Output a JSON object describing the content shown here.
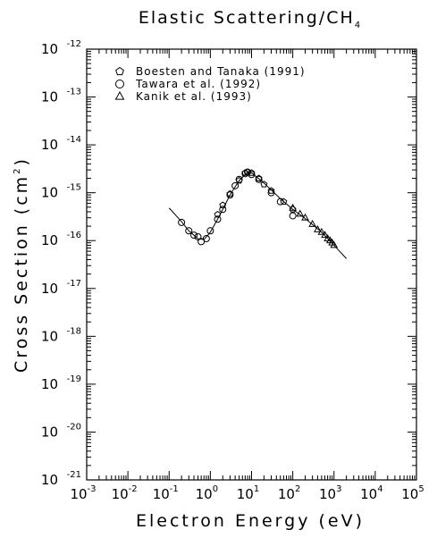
{
  "chart_data": {
    "type": "scatter",
    "title": "Elastic Scattering/CH",
    "title_subscript": "4",
    "x_label": "Electron Energy (eV)",
    "y_label": "Cross Section (cm",
    "y_label_superscript": "2",
    "y_label_end": ")",
    "log_x": true,
    "log_y": true,
    "legend": "top-left",
    "xlim": [
      0.001,
      100000
    ],
    "ylim": [
      1e-21,
      1e-12
    ],
    "xticks": [
      {
        "value": 0.001,
        "label": "10",
        "exponent": "-3"
      },
      {
        "value": 0.01,
        "label": "10",
        "exponent": "-2"
      },
      {
        "value": 0.1,
        "label": "10",
        "exponent": "-1"
      },
      {
        "value": 1,
        "label": "10",
        "exponent": "0"
      },
      {
        "value": 10,
        "label": "10",
        "exponent": "1"
      },
      {
        "value": 100,
        "label": "10",
        "exponent": "2"
      },
      {
        "value": 1000,
        "label": "10",
        "exponent": "3"
      },
      {
        "value": 10000,
        "label": "10",
        "exponent": "4"
      },
      {
        "value": 100000,
        "label": "10",
        "exponent": "5"
      }
    ],
    "yticks": [
      {
        "value": 1e-21,
        "label": "10",
        "exponent": "-21"
      },
      {
        "value": 1e-20,
        "label": "10",
        "exponent": "-20"
      },
      {
        "value": 1e-19,
        "label": "10",
        "exponent": "-19"
      },
      {
        "value": 1e-18,
        "label": "10",
        "exponent": "-18"
      },
      {
        "value": 1e-17,
        "label": "10",
        "exponent": "-17"
      },
      {
        "value": 1e-16,
        "label": "10",
        "exponent": "-16"
      },
      {
        "value": 1e-15,
        "label": "10",
        "exponent": "-15"
      },
      {
        "value": 1e-14,
        "label": "10",
        "exponent": "-14"
      },
      {
        "value": 1e-13,
        "label": "10",
        "exponent": "-13"
      },
      {
        "value": 1e-12,
        "label": "10",
        "exponent": "-12"
      }
    ],
    "series": [
      {
        "name": "Boesten and Tanaka (1991)",
        "marker": "pentagon",
        "color": "#000000",
        "x": [
          1.5,
          2,
          3,
          5,
          7,
          8,
          10,
          15,
          20,
          30,
          60,
          100
        ],
        "values": [
          3.5e-16,
          5.5e-16,
          9.5e-16,
          1.8e-15,
          2.6e-15,
          2.7e-15,
          2.6e-15,
          2e-15,
          1.5e-15,
          1.1e-15,
          6.5e-16,
          4.5e-16
        ]
      },
      {
        "name": "Tawara et al. (1992)",
        "marker": "circle",
        "color": "#000000",
        "x": [
          0.2,
          0.3,
          0.4,
          0.5,
          0.6,
          0.8,
          1,
          1.5,
          2,
          3,
          4,
          5,
          7,
          8,
          10,
          15,
          30,
          50,
          100
        ],
        "values": [
          2.4e-16,
          1.6e-16,
          1.3e-16,
          1.2e-16,
          9.5e-17,
          1.1e-16,
          1.6e-16,
          2.8e-16,
          4.5e-16,
          9e-16,
          1.4e-15,
          1.9e-15,
          2.5e-15,
          2.7e-15,
          2.4e-15,
          1.9e-15,
          1e-15,
          6.5e-16,
          3.3e-16
        ]
      },
      {
        "name": "Kanik et al. (1993)",
        "marker": "triangle",
        "color": "#000000",
        "x": [
          100,
          150,
          200,
          300,
          400,
          500,
          600,
          700,
          800,
          900,
          1000
        ],
        "values": [
          4.8e-16,
          3.6e-16,
          3e-16,
          2.2e-16,
          1.7e-16,
          1.5e-16,
          1.3e-16,
          1.1e-16,
          1e-16,
          9e-17,
          8e-17
        ]
      },
      {
        "marker": "line",
        "color": "#000000",
        "x": [
          0.1,
          0.2,
          0.3,
          0.5,
          0.7,
          1,
          1.5,
          2,
          3,
          5,
          8,
          10,
          20,
          50,
          100,
          200,
          500,
          1000,
          2000
        ],
        "values": [
          4.8e-16,
          2.5e-16,
          1.6e-16,
          1.1e-16,
          1.05e-16,
          1.5e-16,
          2.8e-16,
          4.5e-16,
          9e-16,
          1.8e-15,
          2.7e-15,
          2.6e-15,
          1.6e-15,
          7.5e-16,
          4.5e-16,
          2.9e-16,
          1.5e-16,
          8e-17,
          4.2e-17
        ]
      }
    ]
  }
}
